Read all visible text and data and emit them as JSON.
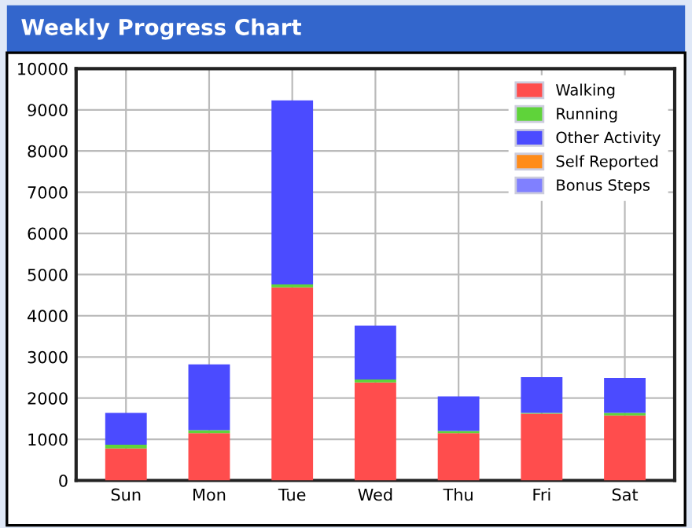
{
  "chart_data": {
    "type": "bar",
    "title": "Weekly Progress Chart",
    "stacked": true,
    "categories": [
      "Sun",
      "Mon",
      "Tue",
      "Wed",
      "Thu",
      "Fri",
      "Sat"
    ],
    "series": [
      {
        "name": "Walking",
        "color": "#ff4d4d",
        "values": [
          780,
          1150,
          4690,
          2380,
          1150,
          1620,
          1580
        ]
      },
      {
        "name": "Running",
        "color": "#5fd33a",
        "values": [
          90,
          70,
          70,
          70,
          50,
          20,
          60
        ]
      },
      {
        "name": "Other Activity",
        "color": "#4b4bff",
        "values": [
          770,
          1600,
          4470,
          1310,
          840,
          870,
          850
        ]
      },
      {
        "name": "Self Reported",
        "color": "#ff8c1a",
        "values": [
          0,
          0,
          0,
          0,
          0,
          0,
          0
        ]
      },
      {
        "name": "Bonus Steps",
        "color": "#8080ff",
        "values": [
          0,
          0,
          0,
          0,
          0,
          0,
          0
        ]
      }
    ],
    "ylim": [
      0,
      10000
    ],
    "yticks": [
      0,
      1000,
      2000,
      3000,
      4000,
      5000,
      6000,
      7000,
      8000,
      9000,
      10000
    ],
    "grid": true,
    "legend": "top right"
  }
}
